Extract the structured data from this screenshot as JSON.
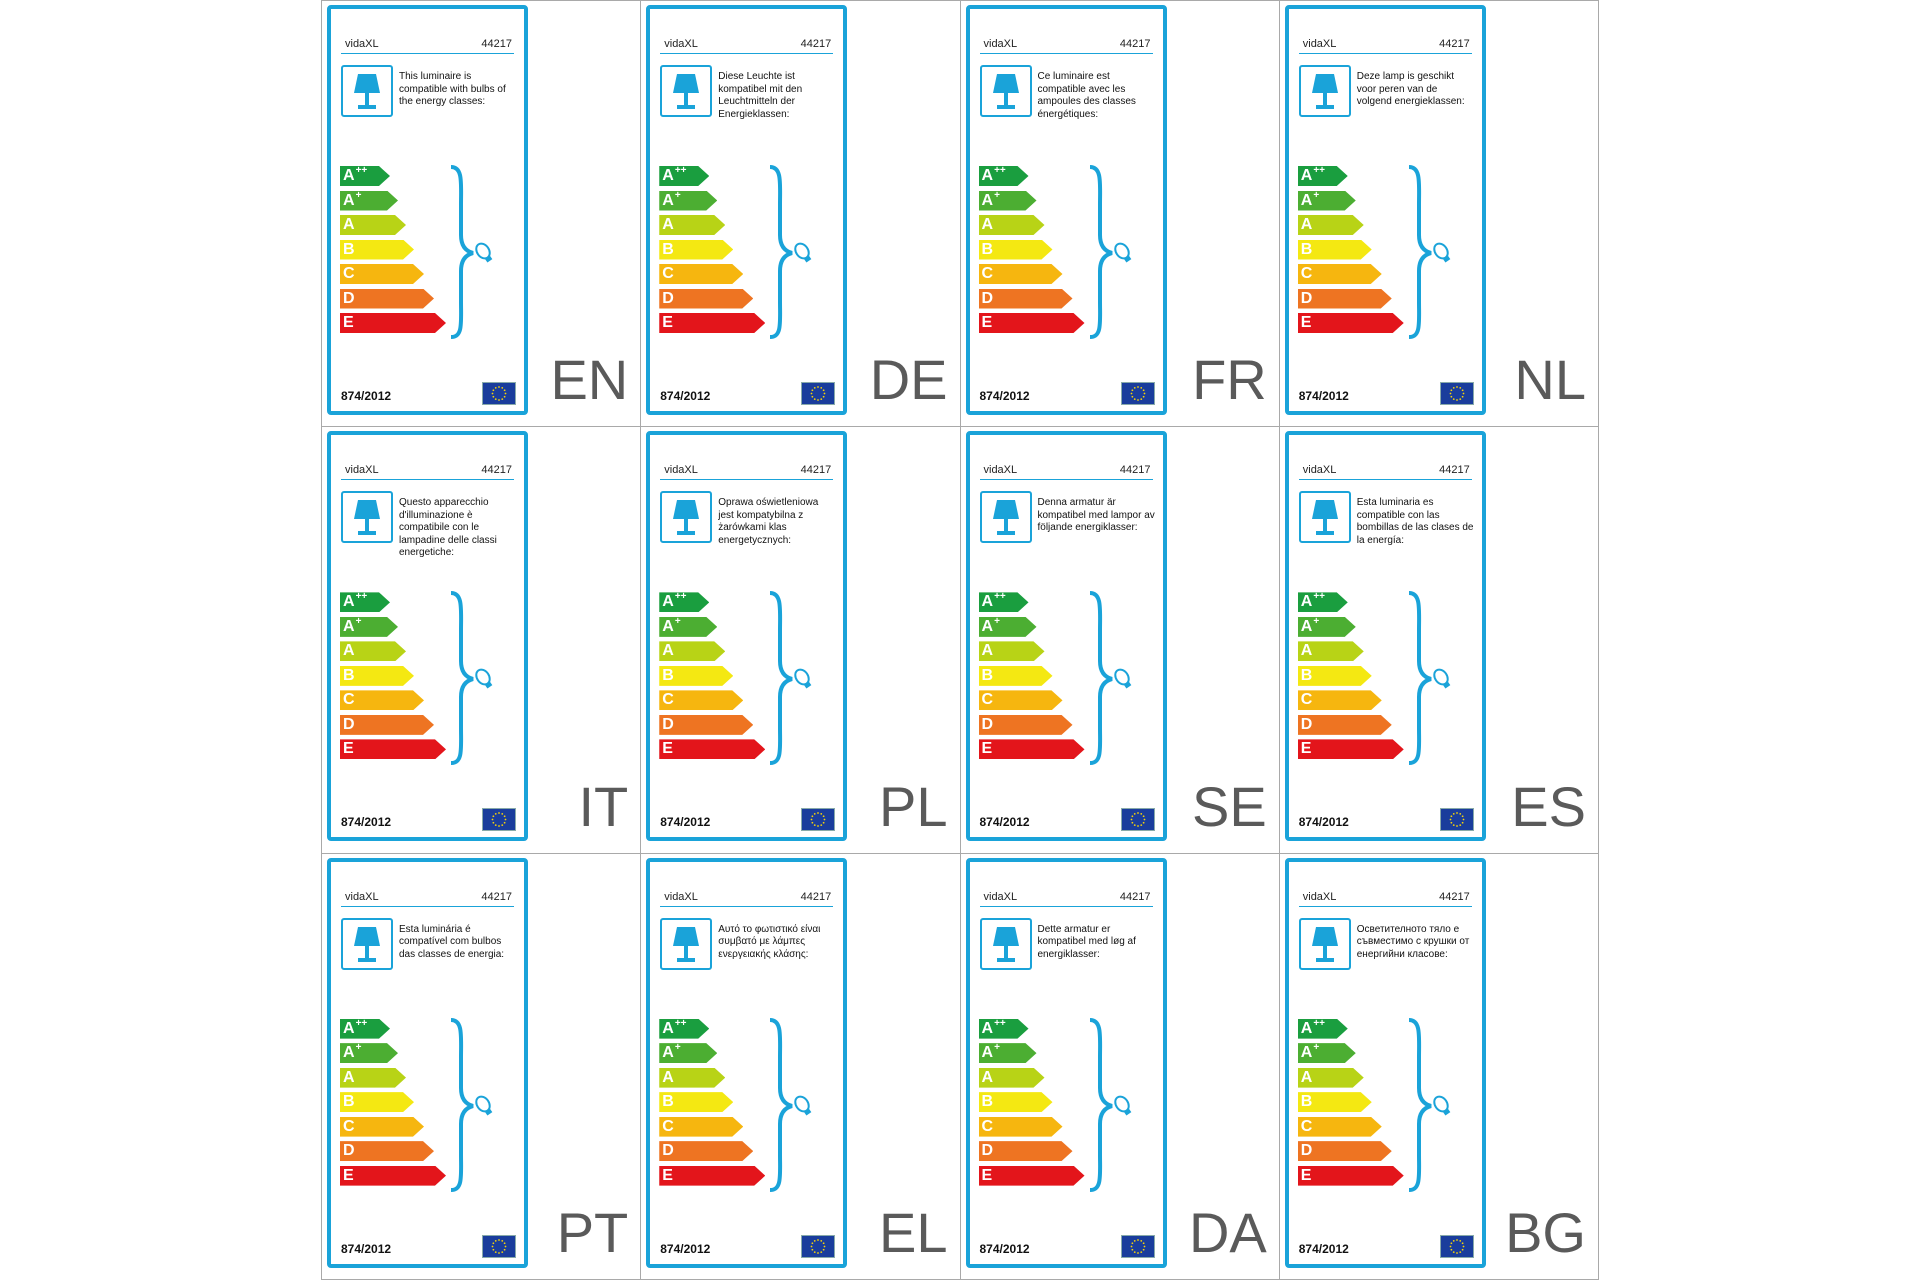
{
  "brand": "vidaXL",
  "model": "44217",
  "regulation": "874/2012",
  "energy_classes": [
    {
      "letter": "A",
      "sup": "++",
      "color": "#1a9e3f"
    },
    {
      "letter": "A",
      "sup": "+",
      "color": "#4cae32"
    },
    {
      "letter": "A",
      "sup": "",
      "color": "#b8d316"
    },
    {
      "letter": "B",
      "sup": "",
      "color": "#f4e812"
    },
    {
      "letter": "C",
      "sup": "",
      "color": "#f6b60f"
    },
    {
      "letter": "D",
      "sup": "",
      "color": "#ee7422"
    },
    {
      "letter": "E",
      "sup": "",
      "color": "#e3151b"
    }
  ],
  "colors": {
    "frame": "#1aa3d9",
    "grid_lines": "#a9a9a9",
    "eu_flag": "#1a3d9c"
  },
  "labels": [
    {
      "lang": "EN",
      "text": "This luminaire is compatible with bulbs of the energy classes:"
    },
    {
      "lang": "DE",
      "text": "Diese Leuchte ist kompatibel mit den Leuchtmitteln der Energieklassen:"
    },
    {
      "lang": "FR",
      "text": "Ce luminaire est compatible avec les ampoules des classes énergétiques:"
    },
    {
      "lang": "NL",
      "text": "Deze lamp is geschikt voor peren van de volgend energieklassen:"
    },
    {
      "lang": "IT",
      "text": "Questo apparecchio d'illuminazione è compatibile con le lampadine delle classi energetiche:"
    },
    {
      "lang": "PL",
      "text": "Oprawa oświetleniowa jest kompatybilna z żarówkami klas energetycznych:"
    },
    {
      "lang": "SE",
      "text": "Denna armatur är kompatibel med lampor av följande energiklasser:"
    },
    {
      "lang": "ES",
      "text": "Esta luminaria es compatible con las bombillas de las clases de la energía:"
    },
    {
      "lang": "PT",
      "text": "Esta luminária é compatível com bulbos das classes de energia:"
    },
    {
      "lang": "EL",
      "text": "Αυτό το φωτιστικό είναι συμβατό με λάμπες ενεργειακής κλάσης:"
    },
    {
      "lang": "DA",
      "text": "Dette armatur er kompatibel med løg af energiklasser:"
    },
    {
      "lang": "BG",
      "text": "Осветителното тяло е съвместимо с крушки от енергийни класове:"
    }
  ]
}
